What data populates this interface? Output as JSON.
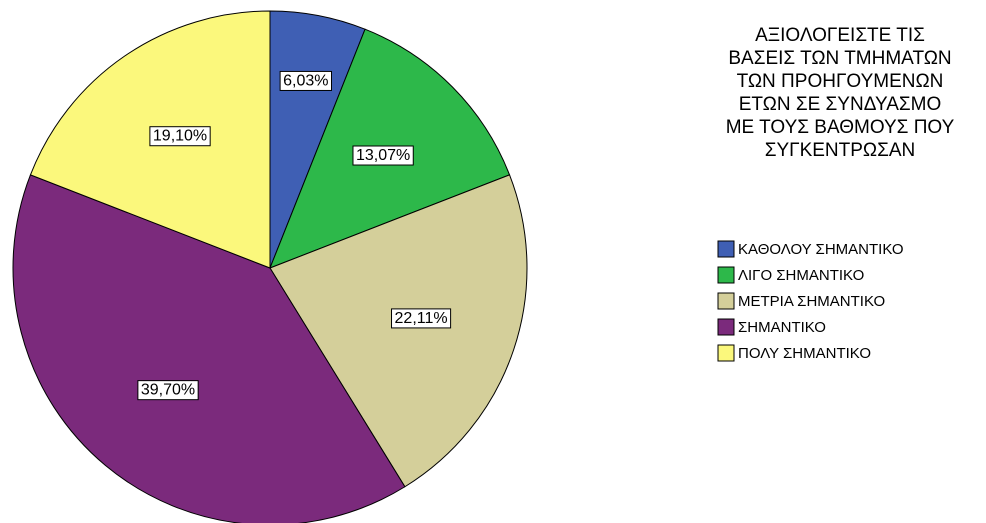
{
  "chart_data": {
    "type": "pie",
    "legend_title": "ΑΞΙΟΛΟΓΕΙΣΤΕ ΤΙΣ ΒΑΣΕΙΣ ΤΩΝ ΤΜΗΜΑΤΩΝ ΤΩΝ ΠΡΟΗΓΟΥΜΕΝΩΝ ΕΤΩΝ ΣΕ ΣΥΝΔΥΑΣΜΟ ΜΕ ΤΟΥΣ ΒΑΘΜΟΥΣ ΠΟΥ ΣΥΓΚΕΝΤΡΩΣΑΝ",
    "categories": [
      "ΚΑΘΟΛΟΥ ΣΗΜΑΝΤΙΚΟ",
      "ΛΙΓΟ ΣΗΜΑΝΤΙΚΟ",
      "ΜΕΤΡΙΑ ΣΗΜΑΝΤΙΚΟ",
      "ΣΗΜΑΝΤΙΚΟ",
      "ΠΟΛΥ ΣΗΜΑΝΤΙΚΟ"
    ],
    "values": [
      6.03,
      13.07,
      22.11,
      39.7,
      19.1
    ],
    "value_labels": [
      "6,03%",
      "13,07%",
      "22,11%",
      "39,70%",
      "19,10%"
    ],
    "colors": [
      "#3f5fb4",
      "#2db84a",
      "#d4cf9a",
      "#7b2a7c",
      "#fbf87c"
    ],
    "legend": "right"
  }
}
